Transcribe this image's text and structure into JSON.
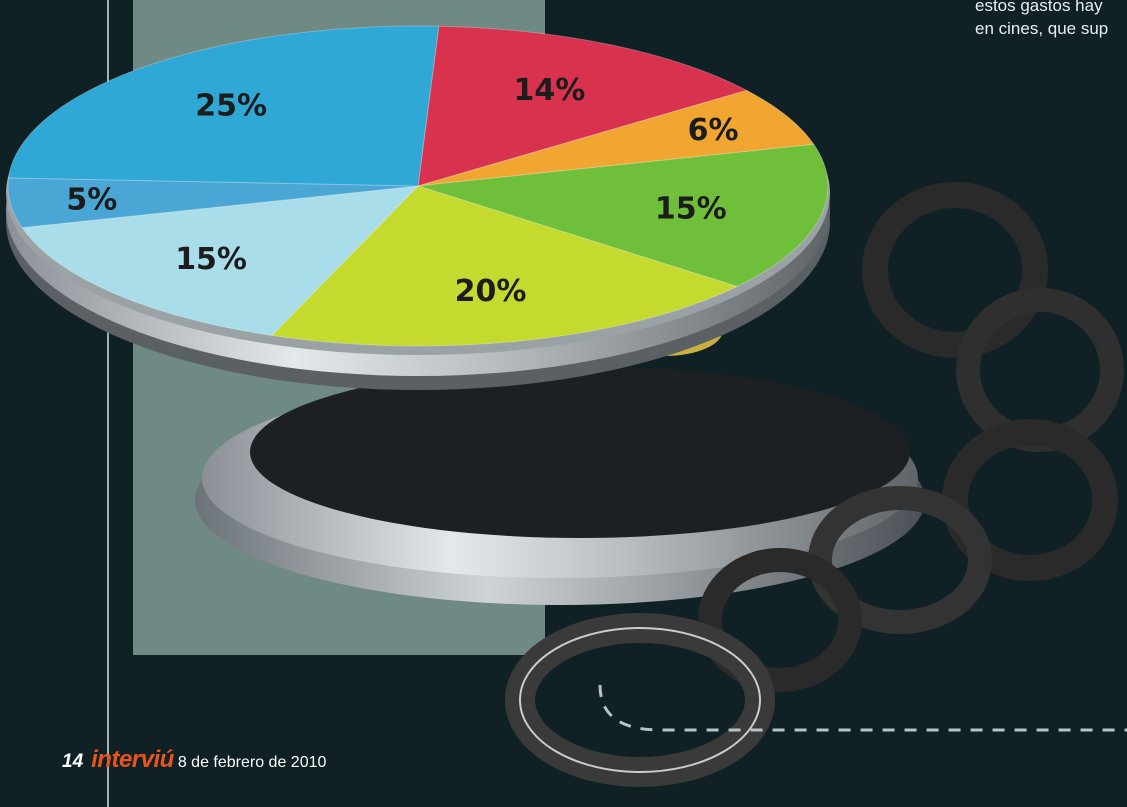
{
  "article": {
    "text_lines": [
      "estos gastos hay",
      "en cines, que sup"
    ]
  },
  "footer": {
    "page_number": "14",
    "magazine": "interviú",
    "date": "8 de febrero de 2010"
  },
  "chart_data": {
    "type": "pie",
    "title": "",
    "values": [
      14,
      6,
      15,
      20,
      15,
      5,
      25
    ],
    "labels": [
      "14%",
      "6%",
      "15%",
      "20%",
      "15%",
      "5%",
      "25%"
    ],
    "colors": [
      "#d8324e",
      "#f2a632",
      "#6fbf3a",
      "#c4da2e",
      "#a9ddea",
      "#4aa6d4",
      "#2fa8d6"
    ],
    "legend": "none",
    "decoration": "pie drawn on the lid of an open film canister with film strip"
  }
}
